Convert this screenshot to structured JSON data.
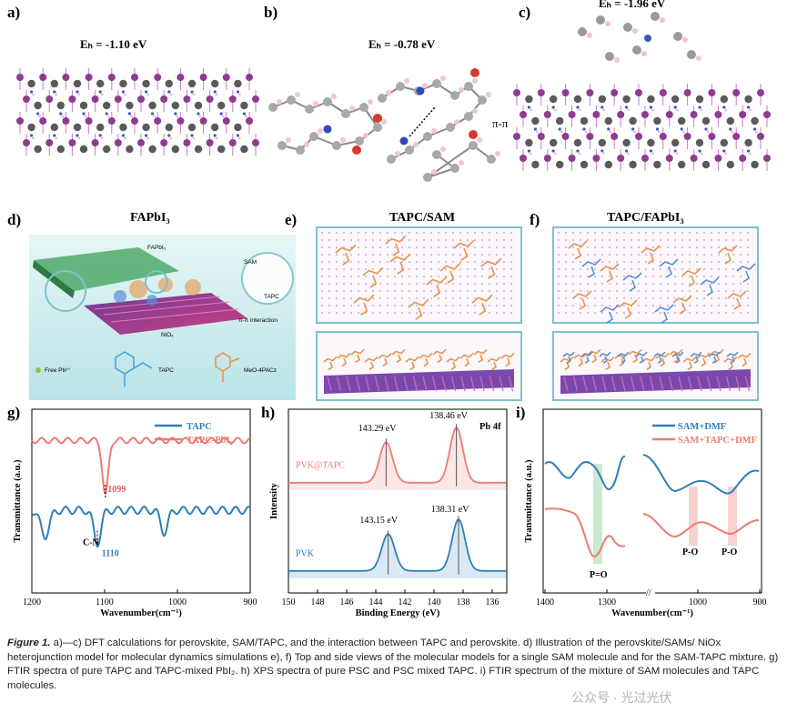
{
  "panels": {
    "a": {
      "label": "a)",
      "energy": "Eₕ = -1.10 eV"
    },
    "b": {
      "label": "b)",
      "energy": "Eₕ = -0.78 eV",
      "annotation": "π-π"
    },
    "c": {
      "label": "c)",
      "energy": "Eₕ = -1.96 eV"
    },
    "d": {
      "label": "d)",
      "title": "FAPbI₃",
      "texts": {
        "top": "FAPbI₃",
        "sam": "SAM",
        "tapc": "TAPC",
        "pipi": "π-π interaction",
        "nio": "NiOₓ",
        "freepb": "Free Pb²⁺",
        "tapc_legend": "TAPC",
        "meo": "MeO-4PACz"
      }
    },
    "e": {
      "label": "e)",
      "title": "TAPC/SAM"
    },
    "f": {
      "label": "f)",
      "title": "TAPC/FAPbI₃"
    },
    "g": {
      "label": "g)"
    },
    "h": {
      "label": "h)"
    },
    "i": {
      "label": "i)"
    }
  },
  "chart_data": [
    {
      "panel": "g",
      "type": "line",
      "xlabel": "Wavenumber(cm⁻¹)",
      "ylabel": "Transmittance (a.u.)",
      "xlim": [
        1200,
        900
      ],
      "xticks": [
        "1200",
        "1100",
        "1000",
        "900"
      ],
      "legend": "top-right",
      "series": [
        {
          "name": "TAPC",
          "color": "#2e7fb6",
          "baseline": 0.45,
          "noise": 0.02,
          "dips": [
            [
              1182,
              0.14,
              6
            ],
            [
              1110,
              0.18,
              5
            ],
            [
              1018,
              0.12,
              5
            ]
          ]
        },
        {
          "name": "TAPC-PbI₂",
          "color": "#ef7a72",
          "baseline": 0.83,
          "noise": 0.015,
          "dips": [
            [
              1099,
              0.3,
              4
            ]
          ]
        }
      ],
      "annotations": [
        {
          "text": "1099",
          "x": 1096,
          "y": 0.55,
          "color": "#e06060"
        },
        {
          "text": "1110",
          "x": 1104,
          "y": 0.2,
          "color": "#2e7fb6"
        },
        {
          "text": "C-N",
          "x": 1130,
          "y": 0.26,
          "color": "#000"
        }
      ]
    },
    {
      "panel": "h",
      "type": "line",
      "title": "Pb 4f",
      "xlabel": "Binding Energy (eV)",
      "ylabel": "Intensity",
      "xlim": [
        150,
        135
      ],
      "xticks": [
        "150",
        "148",
        "146",
        "144",
        "142",
        "140",
        "138",
        "136"
      ],
      "series": [
        {
          "name": "PVK@TAPC",
          "color": "#ef7a72",
          "baseline": 0.6,
          "peaks": [
            [
              143.29,
              0.22,
              0.45
            ],
            [
              138.46,
              0.3,
              0.45
            ]
          ]
        },
        {
          "name": "PVK",
          "color": "#2e7fb6",
          "baseline": 0.12,
          "peaks": [
            [
              143.15,
              0.2,
              0.45
            ],
            [
              138.31,
              0.28,
              0.45
            ]
          ]
        }
      ],
      "annotations": [
        {
          "text": "143.29 eV",
          "x": 145.2,
          "y": 0.88
        },
        {
          "text": "138.46 eV",
          "x": 140.3,
          "y": 0.95
        },
        {
          "text": "143.15 eV",
          "x": 145.1,
          "y": 0.38
        },
        {
          "text": "138.31 eV",
          "x": 140.2,
          "y": 0.44
        }
      ]
    },
    {
      "panel": "i",
      "type": "line",
      "xlabel": "Wavenumber(cm⁻¹)",
      "ylabel": "Transmittance (a.u.)",
      "xticks": [
        "1400",
        "1300",
        "1000",
        "900"
      ],
      "x_break": true,
      "legend": "top-right",
      "series": [
        {
          "name": "SAM+DMF",
          "color": "#2e7fb6"
        },
        {
          "name": "SAM+TAPC+DMF",
          "color": "#ef7a72"
        }
      ],
      "annotations": [
        {
          "text": "P=O",
          "color": "#000"
        },
        {
          "text": "P-O",
          "color": "#000"
        },
        {
          "text": "P-O",
          "color": "#000"
        }
      ]
    }
  ],
  "caption": {
    "lead": "Figure 1.",
    "text": " a)—c) DFT calculations for perovskite, SAM/TAPC, and the interaction between TAPC and perovskite. d) Illustration of the perovskite/SAMs/ NiOx heterojunction model for molecular dynamics simulations e), f) Top and side views of the molecular models for a single SAM molecule and for the SAM-TAPC mixture. g) FTIR spectra of pure TAPC and TAPC-mixed PbI₂. h) XPS spectra of pure PSC and PSC mixed TAPC. i) FTIR spectrum of the mixture of SAM molecules and TAPC molecules."
  },
  "watermark": "公众号 · 光过光伏",
  "colors": {
    "purple": "#8e3c8f",
    "gray": "#5a5a5a",
    "blue": "#2e7fb6",
    "red": "#ef7a72",
    "orange": "#e8934a",
    "teal": "#7cc4c9"
  }
}
